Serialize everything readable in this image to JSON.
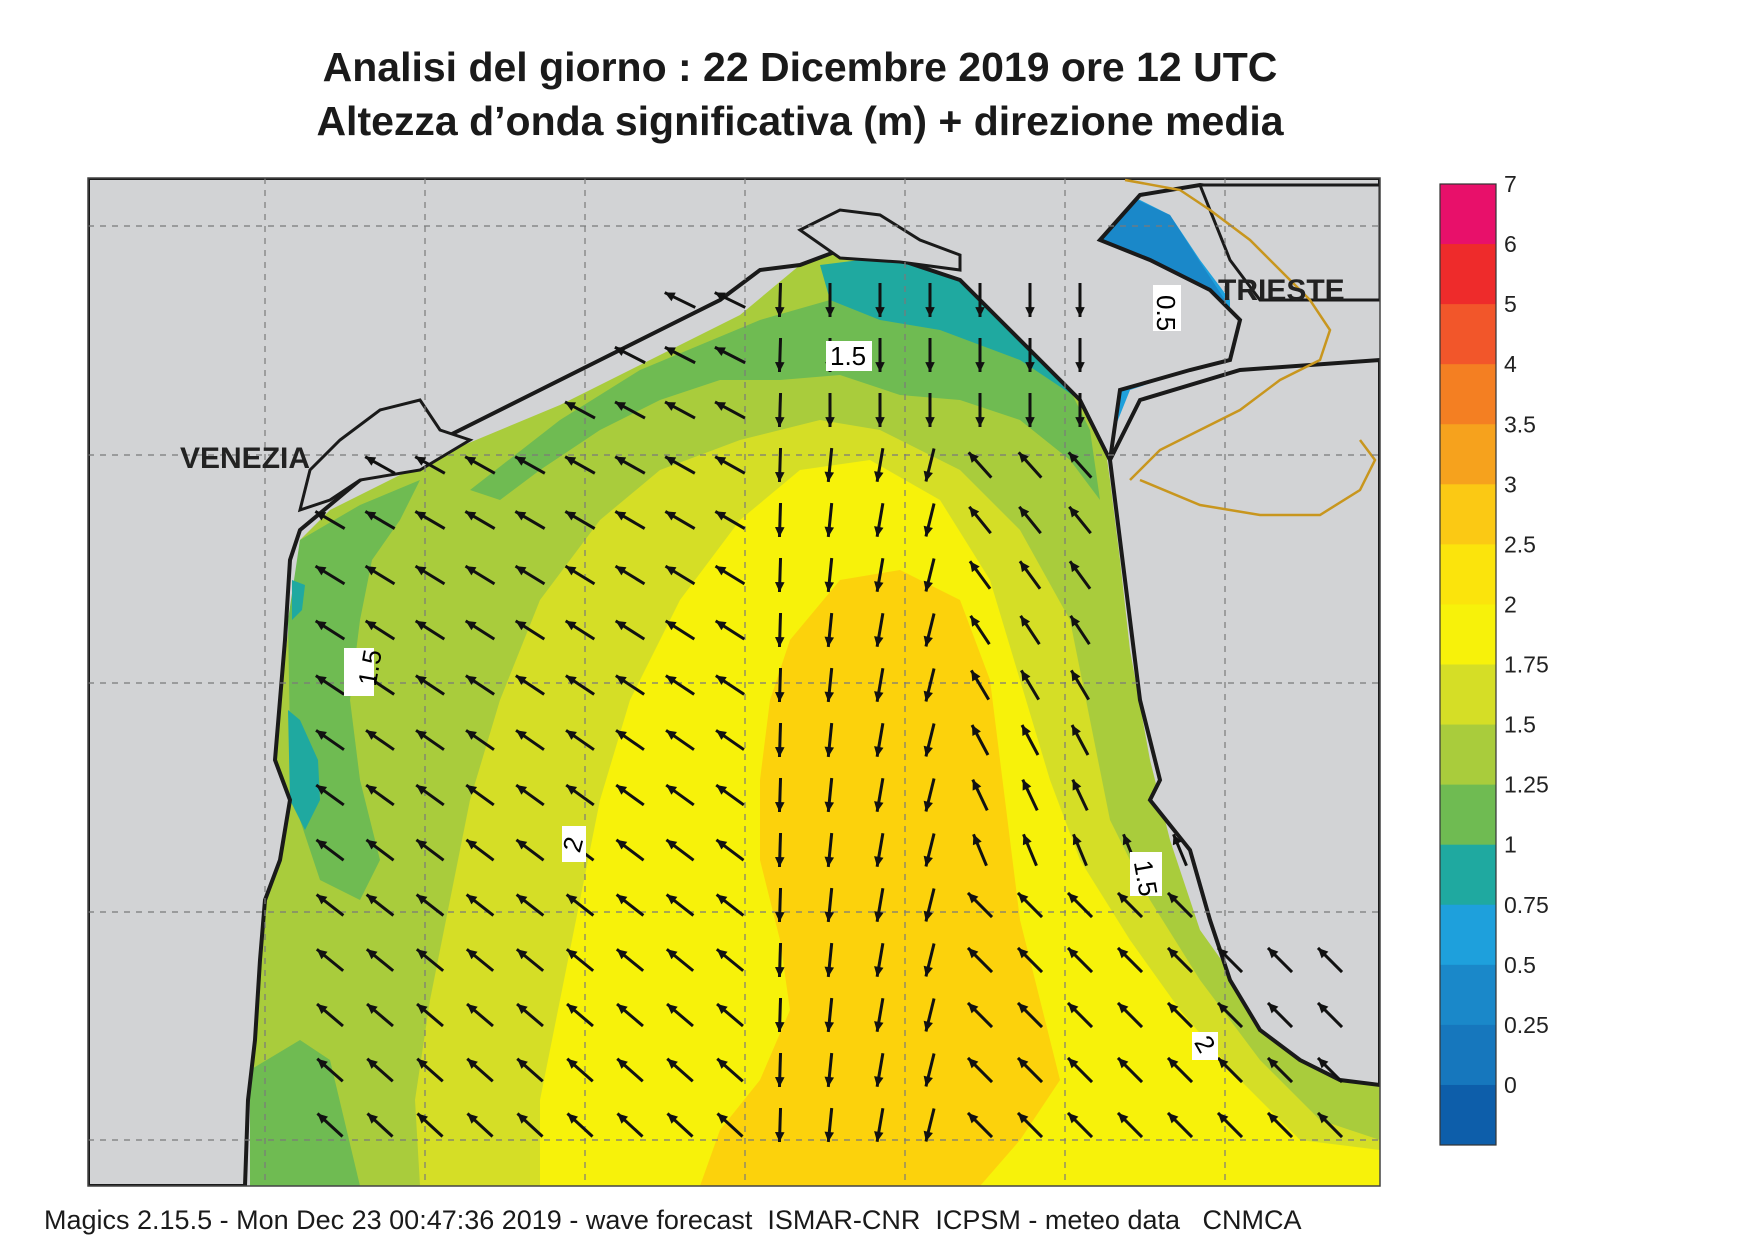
{
  "title_line1": "Analisi del giorno :  22 Dicembre  2019   ore 12 UTC",
  "title_line2": "Altezza d’onda significativa (m) + direzione media",
  "footer": "Magics 2.15.5 - Mon Dec 23 00:47:36 2019 - wave forecast  ISMAR-CNR  ICPSM - meteo data   CNMCA",
  "cities": {
    "venezia": "VENEZIA",
    "trieste": "TRIESTE"
  },
  "contour_labels": [
    "1.5",
    "1.5",
    "2",
    "1.5",
    "2",
    "0.5"
  ],
  "colorbar": {
    "ticks": [
      "7",
      "6",
      "5",
      "4",
      "3.5",
      "3",
      "2.5",
      "2",
      "1.75",
      "1.5",
      "1.25",
      "1",
      "0.75",
      "0.5",
      "0.25",
      "0"
    ],
    "colors": [
      "#e8106a",
      "#ee2b2b",
      "#f2562a",
      "#f47f22",
      "#f6a21d",
      "#fbc914",
      "#fbe40c",
      "#f7f20a",
      "#d5de26",
      "#a9cc3c",
      "#6fbb52",
      "#1fa9a0",
      "#1ea0dc",
      "#1a88c9",
      "#1677bd",
      "#0d5eaa"
    ]
  },
  "colors": {
    "land": "#d2d3d5",
    "coast": "#1a1a1a",
    "border": "#c8961e",
    "sea_max": "#fcd20c",
    "sea_high": "#f7f20a",
    "sea_mid": "#d5de26",
    "sea_low": "#a9cc3c",
    "sea_lower": "#6fbb52",
    "sea_teal": "#1fa9a0",
    "sea_blue": "#1ea0dc",
    "sea_deep": "#1a88c9"
  },
  "arrow_field": {
    "description_hidden": false
  }
}
